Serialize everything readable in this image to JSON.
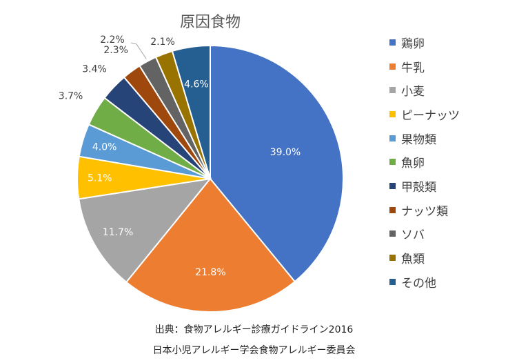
{
  "chart_data": {
    "type": "pie",
    "title": "原因食物",
    "categories": [
      "鶏卵",
      "牛乳",
      "小麦",
      "ピーナッツ",
      "果物類",
      "魚卵",
      "甲殻類",
      "ナッツ類",
      "ソバ",
      "魚類",
      "その他"
    ],
    "values": [
      39.0,
      21.8,
      11.7,
      5.1,
      4.0,
      3.7,
      3.4,
      2.3,
      2.2,
      2.1,
      4.6
    ],
    "labels": [
      "39.0%",
      "21.8%",
      "11.7%",
      "5.1%",
      "4.0%",
      "3.7%",
      "3.4%",
      "2.3%",
      "2.2%",
      "2.1%",
      "4.6%"
    ],
    "colors": [
      "#4472c4",
      "#ed7d31",
      "#a5a5a5",
      "#ffc000",
      "#5b9bd5",
      "#70ad47",
      "#264478",
      "#9e480e",
      "#636363",
      "#997300",
      "#255e91"
    ],
    "legend_position": "right"
  },
  "source": {
    "line1": "出典：食物アレルギー診療ガイドライン2016",
    "line2": "日本小児アレルギー学会食物アレルギー委員会"
  }
}
